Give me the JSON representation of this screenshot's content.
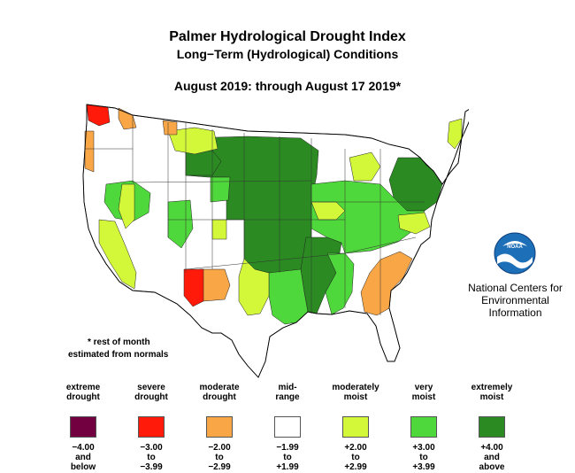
{
  "title": {
    "line1": "Palmer Hydrological Drought Index",
    "line2": "Long−Term (Hydrological) Conditions",
    "line3": "August 2019: through August 17 2019*"
  },
  "footnote": {
    "line1": "* rest of month",
    "line2": "estimated from normals"
  },
  "logo": {
    "icon": "noaa-logo-icon",
    "text": "NOAA",
    "org_lines": [
      "National Centers for",
      "Environmental",
      "Information"
    ]
  },
  "colors": {
    "extreme_drought": "#720041",
    "severe_drought": "#ff1a0a",
    "moderate_drought": "#f9a646",
    "mid_range": "#ffffff",
    "moderately_moist": "#d3f83a",
    "very_moist": "#4fd83b",
    "extremely_moist": "#2b8a22"
  },
  "legend": [
    {
      "label": [
        "extreme",
        "drought"
      ],
      "range": [
        "−4.00",
        "and",
        "below"
      ],
      "color": "#720041"
    },
    {
      "label": [
        "severe",
        "drought"
      ],
      "range": [
        "−3.00",
        "to",
        "−3.99"
      ],
      "color": "#ff1a0a"
    },
    {
      "label": [
        "moderate",
        "drought"
      ],
      "range": [
        "−2.00",
        "to",
        "−2.99"
      ],
      "color": "#f9a646"
    },
    {
      "label": [
        "mid-",
        "range"
      ],
      "range": [
        "−1.99",
        "to",
        "+1.99"
      ],
      "color": "#ffffff"
    },
    {
      "label": [
        "moderately",
        "moist"
      ],
      "range": [
        "+2.00",
        "to",
        "+2.99"
      ],
      "color": "#d3f83a"
    },
    {
      "label": [
        "very",
        "moist"
      ],
      "range": [
        "+3.00",
        "to",
        "+3.99"
      ],
      "color": "#4fd83b"
    },
    {
      "label": [
        "extremely",
        "moist"
      ],
      "range": [
        "+4.00",
        "and",
        "above"
      ],
      "color": "#2b8a22"
    }
  ]
}
